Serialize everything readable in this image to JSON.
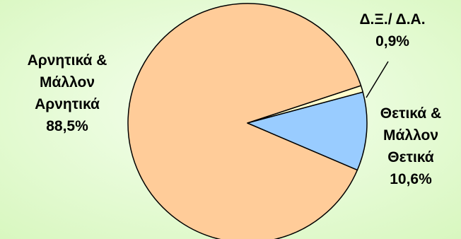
{
  "colors": {
    "background_center": "#f6fff0",
    "background_edge": "#d8f7bf",
    "negative_slice": "#ffcc99",
    "positive_slice": "#99ccff",
    "dk_slice": "#ffffcc",
    "outline": "#000000"
  },
  "chart_data": {
    "type": "pie",
    "title": "",
    "start_angle_deg": 15,
    "slices": [
      {
        "label_lines": [
          "Δ.Ξ./ Δ.Α."
        ],
        "value": 0.9,
        "value_text": "0,9%",
        "color": "#ffffcc"
      },
      {
        "label_lines": [
          "Αρνητικά &",
          "Μάλλον",
          "Αρνητικά"
        ],
        "value": 88.5,
        "value_text": "88,5%",
        "color": "#ffcc99"
      },
      {
        "label_lines": [
          "Θετικά &",
          "Μάλλον",
          "Θετικά"
        ],
        "value": 10.6,
        "value_text": "10,6%",
        "color": "#99ccff"
      }
    ]
  }
}
